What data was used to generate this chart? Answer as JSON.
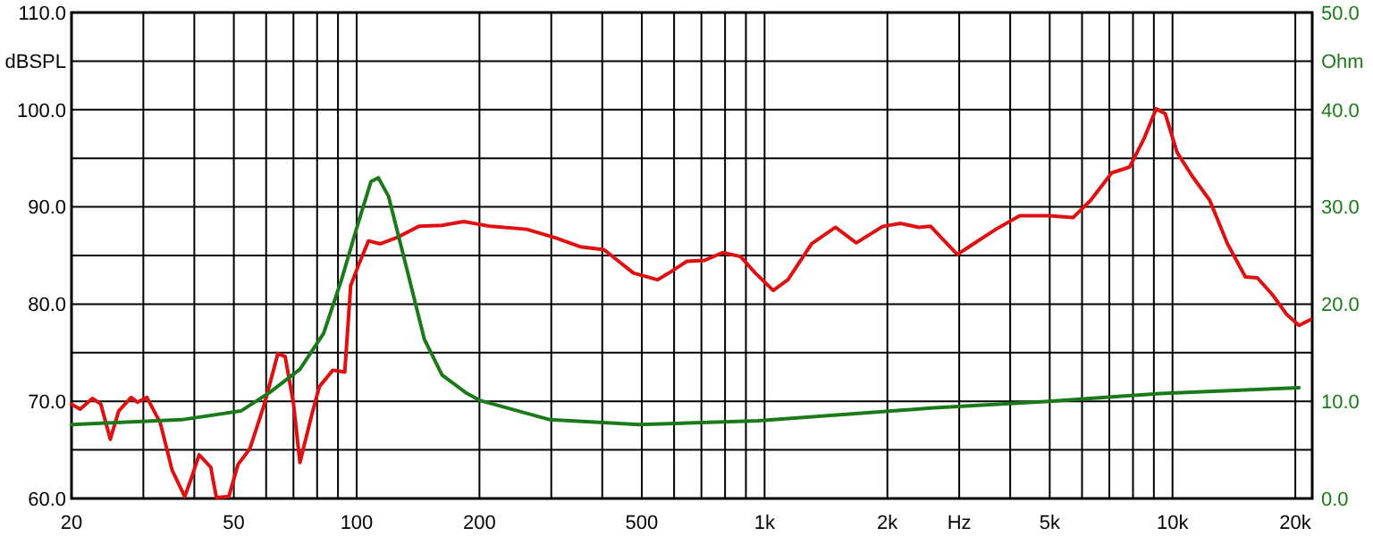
{
  "chart_data": {
    "type": "line",
    "ylabel": "dBSPL",
    "y2label": "Ohm",
    "log": "x",
    "grid": true,
    "marker": "none",
    "line_style": "solid",
    "xlim": [
      20,
      22000
    ],
    "ylim": [
      60,
      110
    ],
    "y2lim": [
      0,
      50
    ],
    "xticks": [
      20,
      {
        "value": 30,
        "label": null
      },
      {
        "value": 40,
        "label": null
      },
      50,
      {
        "value": 60,
        "label": null
      },
      {
        "value": 70,
        "label": null
      },
      {
        "value": 80,
        "label": null
      },
      {
        "value": 90,
        "label": null
      },
      100,
      200,
      {
        "value": 300,
        "label": null
      },
      {
        "value": 400,
        "label": null
      },
      500,
      {
        "value": 600,
        "label": null
      },
      {
        "value": 700,
        "label": null
      },
      {
        "value": 800,
        "label": null
      },
      {
        "value": 900,
        "label": null
      },
      {
        "value": 1000,
        "label": "1k"
      },
      {
        "value": 2000,
        "label": "2k"
      },
      {
        "value": 3000,
        "label": "Hz"
      },
      {
        "value": 4000,
        "label": null
      },
      {
        "value": 5000,
        "label": "5k"
      },
      {
        "value": 6000,
        "label": null
      },
      {
        "value": 7000,
        "label": null
      },
      {
        "value": 8000,
        "label": null
      },
      {
        "value": 9000,
        "label": null
      },
      {
        "value": 10000,
        "label": "10k"
      },
      {
        "value": 20000,
        "label": "20k"
      }
    ],
    "yticks": [
      {
        "value": 60,
        "label": "60.0"
      },
      {
        "value": 65,
        "label": null
      },
      {
        "value": 70,
        "label": "70.0"
      },
      {
        "value": 75,
        "label": null
      },
      {
        "value": 80,
        "label": "80.0"
      },
      {
        "value": 85,
        "label": null
      },
      {
        "value": 90,
        "label": "90.0"
      },
      {
        "value": 95,
        "label": null
      },
      {
        "value": 100,
        "label": "100.0"
      },
      {
        "value": 105,
        "label": null
      },
      {
        "value": 110,
        "label": "110.0"
      }
    ],
    "y2ticks": [
      {
        "value": 0,
        "label": "0.0"
      },
      {
        "value": 10,
        "label": "10.0"
      },
      {
        "value": 20,
        "label": "20.0"
      },
      {
        "value": 30,
        "label": "30.0"
      },
      {
        "value": 40,
        "label": "40.0"
      },
      {
        "value": 50,
        "label": "50.0"
      }
    ],
    "series": [
      {
        "color": "#e01010",
        "x": [
          20,
          21,
          22.5,
          23.6,
          24.9,
          26.1,
          28,
          29,
          30.6,
          33,
          35.3,
          37.9,
          39.5,
          41.1,
          43.9,
          45.3,
          48.6,
          51.2,
          54.7,
          59.5,
          64.1,
          66.8,
          70,
          72.6,
          77.5,
          81,
          87.4,
          93.5,
          96.7,
          101.7,
          106.9,
          114.3,
          126.4,
          142,
          162,
          183,
          213,
          261,
          308,
          353,
          404,
          477,
          546,
          583,
          645,
          713,
          789,
          873,
          949,
          1050,
          1141,
          1304,
          1492,
          1678,
          1950,
          2157,
          2385,
          2553,
          2967,
          3226,
          3690,
          4219,
          4988,
          5703,
          6306,
          7095,
          7849,
          8531,
          9120,
          9595,
          10260,
          11160,
          12330,
          13640,
          15090,
          16140,
          17550,
          19080,
          20420,
          21800
        ],
        "values": [
          69.7,
          69.2,
          70.3,
          69.7,
          66.1,
          69,
          70.4,
          69.9,
          70.4,
          67.8,
          62.9,
          60.2,
          62.3,
          64.5,
          63.2,
          60.1,
          60.2,
          63.5,
          65.1,
          69.8,
          74.9,
          74.6,
          69.8,
          63.7,
          68.5,
          71.5,
          73.2,
          73,
          81.9,
          84.3,
          86.5,
          86.2,
          86.9,
          88,
          88.1,
          88.5,
          88,
          87.7,
          86.8,
          85.9,
          85.6,
          83.2,
          82.5,
          83.2,
          84.4,
          84.5,
          85.3,
          84.9,
          83.2,
          81.4,
          82.5,
          86.2,
          87.9,
          86.3,
          88,
          88.3,
          87.9,
          88,
          85.1,
          86.1,
          87.7,
          89.1,
          89.1,
          88.9,
          90.7,
          93.5,
          94.1,
          97.1,
          100.1,
          99.6,
          95.6,
          93.2,
          90.7,
          86.2,
          82.8,
          82.7,
          81,
          78.9,
          77.8,
          78.4
        ]
      },
      {
        "color": "#1a7a1a",
        "axis": "y2",
        "x": [
          20,
          37.2,
          52,
          61.2,
          72.6,
          83,
          91.8,
          101.3,
          108.4,
          113,
          119.7,
          132.6,
          146.5,
          162,
          185,
          200,
          298,
          493,
          964,
          2553,
          4988,
          9330,
          20420
        ],
        "values": [
          7.6,
          8.1,
          9,
          10.9,
          13.3,
          17,
          22.5,
          28.6,
          32.6,
          33,
          31.1,
          23.7,
          16.4,
          12.7,
          10.9,
          10.1,
          8.1,
          7.6,
          8,
          9.3,
          10,
          10.8,
          11.4
        ]
      }
    ]
  }
}
